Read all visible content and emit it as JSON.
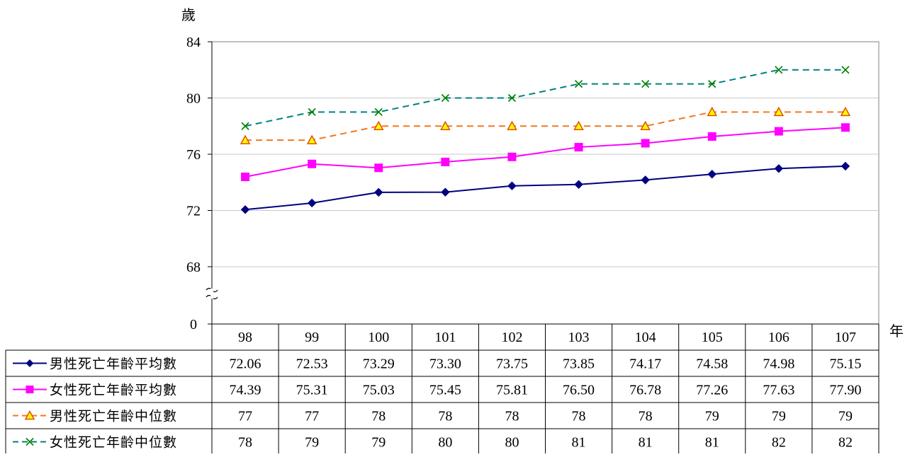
{
  "chart_data": {
    "type": "line",
    "title": "",
    "ylabel": "歲",
    "xlabel": "年",
    "categories": [
      "98",
      "99",
      "100",
      "101",
      "102",
      "103",
      "104",
      "105",
      "106",
      "107"
    ],
    "y_ticks": [
      "84",
      "80",
      "76",
      "72",
      "68",
      "0"
    ],
    "ylim": [
      0,
      84
    ],
    "axis_break_between": [
      0,
      68
    ],
    "grid": true,
    "legend_placement": "data-table",
    "series": [
      {
        "name": "男性死亡年齡平均數",
        "values": [
          72.06,
          72.53,
          73.29,
          73.3,
          73.75,
          73.85,
          74.17,
          74.58,
          74.98,
          75.15
        ],
        "labels": [
          "72.06",
          "72.53",
          "73.29",
          "73.30",
          "73.75",
          "73.85",
          "74.17",
          "74.58",
          "74.98",
          "75.15"
        ],
        "color": "#000080",
        "marker": "diamond",
        "dash": false
      },
      {
        "name": "女性死亡年齡平均數",
        "values": [
          74.39,
          75.31,
          75.03,
          75.45,
          75.81,
          76.5,
          76.78,
          77.26,
          77.63,
          77.9
        ],
        "labels": [
          "74.39",
          "75.31",
          "75.03",
          "75.45",
          "75.81",
          "76.50",
          "76.78",
          "77.26",
          "77.63",
          "77.90"
        ],
        "color": "#ff00ff",
        "marker": "square",
        "dash": false
      },
      {
        "name": "男性死亡年齡中位數",
        "values": [
          77,
          77,
          78,
          78,
          78,
          78,
          78,
          79,
          79,
          79
        ],
        "labels": [
          "77",
          "77",
          "78",
          "78",
          "78",
          "78",
          "78",
          "79",
          "79",
          "79"
        ],
        "color": "#f07820",
        "marker": "triangle",
        "dash": true
      },
      {
        "name": "女性死亡年齡中位數",
        "values": [
          78,
          79,
          79,
          80,
          80,
          81,
          81,
          81,
          82,
          82
        ],
        "labels": [
          "78",
          "79",
          "79",
          "80",
          "80",
          "81",
          "81",
          "81",
          "82",
          "82"
        ],
        "color": "#008080",
        "marker": "x",
        "marker_color": "#008000",
        "dash": true
      }
    ]
  }
}
